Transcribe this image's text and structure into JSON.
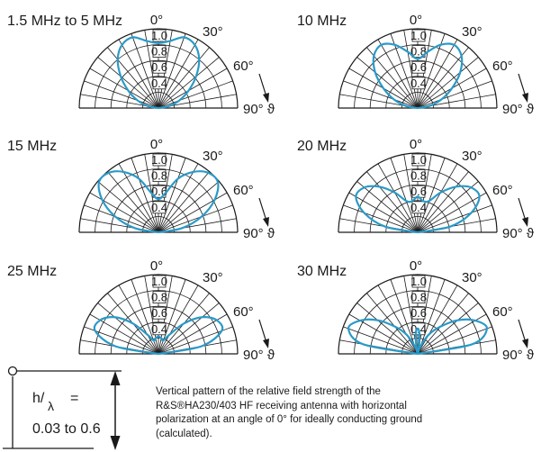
{
  "chart_data": [
    {
      "type": "polar",
      "title": "1.5 MHz to 5 MHz",
      "lobe": [
        [
          0,
          0.82
        ],
        [
          10,
          0.86
        ],
        [
          20,
          0.95
        ],
        [
          30,
          0.92
        ],
        [
          40,
          0.8
        ],
        [
          50,
          0.62
        ],
        [
          60,
          0.44
        ],
        [
          70,
          0.28
        ],
        [
          80,
          0.13
        ],
        [
          90,
          0
        ]
      ]
    },
    {
      "type": "polar",
      "title": "10 MHz",
      "lobe": [
        [
          0,
          0.62
        ],
        [
          10,
          0.72
        ],
        [
          20,
          0.85
        ],
        [
          30,
          0.92
        ],
        [
          40,
          0.86
        ],
        [
          50,
          0.7
        ],
        [
          60,
          0.5
        ],
        [
          70,
          0.32
        ],
        [
          80,
          0.15
        ],
        [
          90,
          0
        ]
      ]
    },
    {
      "type": "polar",
      "title": "15 MHz",
      "lobe": [
        [
          0,
          0.42
        ],
        [
          10,
          0.5
        ],
        [
          20,
          0.72
        ],
        [
          30,
          0.88
        ],
        [
          40,
          0.98
        ],
        [
          50,
          0.98
        ],
        [
          60,
          0.82
        ],
        [
          70,
          0.58
        ],
        [
          80,
          0.3
        ],
        [
          90,
          0
        ]
      ]
    },
    {
      "type": "polar",
      "title": "20 MHz",
      "lobe": [
        [
          0,
          0.45
        ],
        [
          10,
          0.4
        ],
        [
          20,
          0.42
        ],
        [
          30,
          0.58
        ],
        [
          40,
          0.75
        ],
        [
          50,
          0.88
        ],
        [
          60,
          0.9
        ],
        [
          70,
          0.72
        ],
        [
          80,
          0.42
        ],
        [
          90,
          0
        ]
      ]
    },
    {
      "type": "polar",
      "title": "25 MHz",
      "lobe": [
        [
          0,
          0.22
        ],
        [
          10,
          0.2
        ],
        [
          20,
          0.18
        ],
        [
          30,
          0.28
        ],
        [
          40,
          0.5
        ],
        [
          50,
          0.72
        ],
        [
          60,
          0.85
        ],
        [
          70,
          0.85
        ],
        [
          80,
          0.55
        ],
        [
          90,
          0
        ]
      ]
    },
    {
      "type": "polar",
      "title": "30 MHz",
      "lobe": [
        [
          0,
          0.32
        ],
        [
          4,
          0.28
        ],
        [
          8,
          0.16
        ],
        [
          12,
          0.05
        ],
        [
          16,
          0.03
        ],
        [
          20,
          0.1
        ],
        [
          30,
          0.28
        ],
        [
          40,
          0.45
        ],
        [
          50,
          0.66
        ],
        [
          60,
          0.84
        ],
        [
          70,
          0.93
        ],
        [
          80,
          0.7
        ],
        [
          90,
          0
        ]
      ]
    }
  ],
  "axes": {
    "radial_ticks": [
      "1.0",
      "0.8",
      "0.6",
      "0.4"
    ],
    "angle_0": "0°",
    "angle_30": "30°",
    "angle_60": "60°",
    "angle_90": "90° ϑ"
  },
  "legend": {
    "h": "h/",
    "lambda": "λ",
    "eq": "=",
    "range": "0.03 to 0.6"
  },
  "caption": [
    "Vertical pattern of the relative field strength of the",
    "R&S®HA230/403 HF receiving antenna with horizontal",
    "polarization at an angle of 0° for ideally conducting ground",
    "(calculated)."
  ],
  "colors": {
    "lobe": "#2a9ac8",
    "grid": "#1a1a1a"
  }
}
